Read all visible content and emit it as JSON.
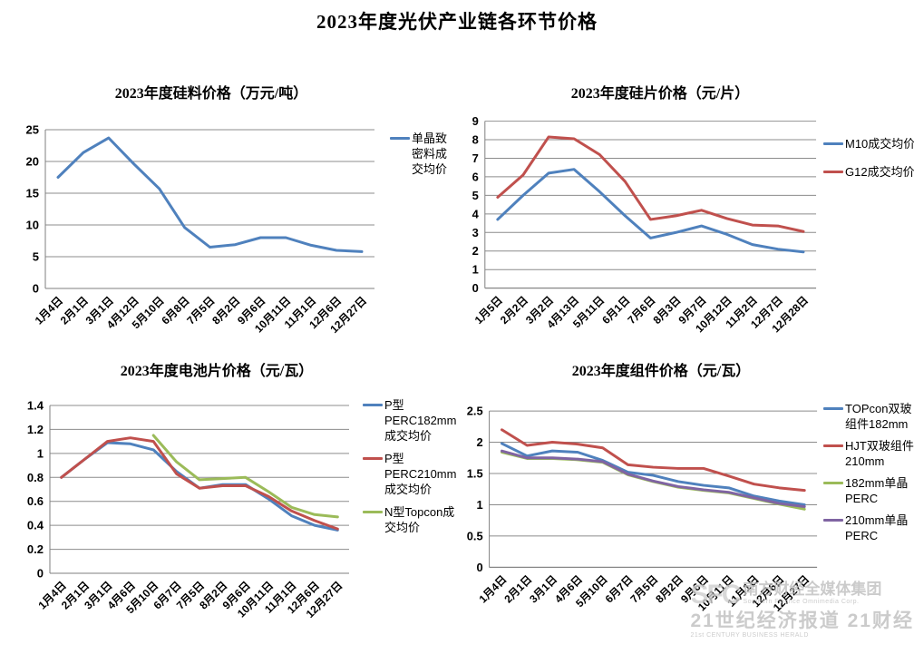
{
  "page_title": "2023年度光伏产业链各环节价格",
  "watermark": {
    "logo": "SFC",
    "org_cn": "南方财经全媒体集团",
    "org_en": "Southern Finance Omnimedia Corp.",
    "brand_cn": "21世纪经济报道 21财经",
    "brand_en": "21st CENTURY BUSINESS HERALD"
  },
  "chart_data": [
    {
      "id": "silicon-material-price",
      "type": "line",
      "title": "2023年度硅料价格（万元/吨）",
      "ylabel": "万元/吨",
      "ylim": [
        0,
        25
      ],
      "ystep": 5,
      "grid": true,
      "legend_position": "right",
      "categories": [
        "1月4日",
        "2月1日",
        "3月1日",
        "4月12日",
        "5月10日",
        "6月8日",
        "7月5日",
        "8月2日",
        "9月6日",
        "10月11日",
        "11月1日",
        "12月6日",
        "12月27日"
      ],
      "series": [
        {
          "name": "单晶致密料成交均价",
          "color": "#4F81BD",
          "values": [
            17.5,
            21.4,
            23.7,
            19.6,
            15.7,
            9.6,
            6.5,
            6.9,
            8.0,
            8.0,
            6.8,
            6.0,
            5.8
          ]
        }
      ]
    },
    {
      "id": "silicon-wafer-price",
      "type": "line",
      "title": "2023年度硅片价格（元/片）",
      "ylabel": "元/片",
      "ylim": [
        0,
        9
      ],
      "ystep": 1,
      "grid": true,
      "legend_position": "right",
      "categories": [
        "1月5日",
        "2月2日",
        "3月2日",
        "4月13日",
        "5月11日",
        "6月1日",
        "7月6日",
        "8月3日",
        "9月7日",
        "10月12日",
        "11月2日",
        "12月7日",
        "12月28日"
      ],
      "series": [
        {
          "name": "M10成交均价",
          "color": "#4F81BD",
          "values": [
            3.7,
            5.0,
            6.2,
            6.4,
            5.2,
            3.9,
            2.7,
            3.0,
            3.35,
            2.9,
            2.35,
            2.1,
            1.95
          ]
        },
        {
          "name": "G12成交均价",
          "color": "#C0504D",
          "values": [
            4.9,
            6.1,
            8.15,
            8.05,
            7.2,
            5.75,
            3.7,
            3.9,
            4.2,
            3.75,
            3.4,
            3.35,
            3.05
          ]
        }
      ]
    },
    {
      "id": "solar-cell-price",
      "type": "line",
      "title": "2023年度电池片价格（元/瓦）",
      "ylabel": "元/瓦",
      "ylim": [
        0,
        1.4
      ],
      "ystep": 0.2,
      "grid": true,
      "legend_position": "right",
      "categories": [
        "1月4日",
        "2月1日",
        "3月1日",
        "4月6日",
        "5月10日",
        "6月7日",
        "7月5日",
        "8月2日",
        "9月6日",
        "10月11日",
        "11月1日",
        "12月6日",
        "12月27日"
      ],
      "series": [
        {
          "name": "P型PERC182mm成交均价",
          "color": "#4F81BD",
          "values": [
            0.8,
            0.95,
            1.09,
            1.08,
            1.03,
            0.85,
            0.71,
            0.74,
            0.74,
            0.62,
            0.48,
            0.4,
            0.36
          ]
        },
        {
          "name": "P型PERC210mm成交均价",
          "color": "#C0504D",
          "values": [
            0.8,
            0.95,
            1.1,
            1.13,
            1.1,
            0.83,
            0.71,
            0.73,
            0.73,
            0.64,
            0.52,
            0.44,
            0.37
          ]
        },
        {
          "name": "N型Topcon成交均价",
          "color": "#9BBB59",
          "values": [
            null,
            null,
            null,
            null,
            1.15,
            0.93,
            0.78,
            0.79,
            0.8,
            0.68,
            0.55,
            0.49,
            0.47
          ]
        }
      ]
    },
    {
      "id": "module-price",
      "type": "line",
      "title": "2023年度组件价格（元/瓦）",
      "ylabel": "元/瓦",
      "ylim": [
        0,
        2.5
      ],
      "ystep": 0.5,
      "grid": true,
      "legend_position": "right",
      "categories": [
        "1月4日",
        "2月1日",
        "3月1日",
        "4月6日",
        "5月10日",
        "6月7日",
        "7月5日",
        "8月2日",
        "9月6日",
        "10月11日",
        "11月1日",
        "12月6日",
        "12月27日"
      ],
      "series": [
        {
          "name": "TOPcon双玻组件182mm",
          "color": "#4F81BD",
          "values": [
            1.98,
            1.78,
            1.86,
            1.84,
            1.71,
            1.52,
            1.47,
            1.37,
            1.31,
            1.27,
            1.14,
            1.06,
            1.0
          ]
        },
        {
          "name": "HJT双玻组件210mm",
          "color": "#C0504D",
          "values": [
            2.2,
            1.95,
            2.0,
            1.97,
            1.91,
            1.64,
            1.6,
            1.58,
            1.58,
            1.46,
            1.33,
            1.27,
            1.23
          ]
        },
        {
          "name": "182mm单晶PERC",
          "color": "#9BBB59",
          "values": [
            1.84,
            1.74,
            1.74,
            1.72,
            1.68,
            1.48,
            1.37,
            1.28,
            1.23,
            1.19,
            1.1,
            1.01,
            0.93
          ]
        },
        {
          "name": "210mm单晶PERC",
          "color": "#8064A2",
          "values": [
            1.86,
            1.75,
            1.75,
            1.73,
            1.69,
            1.49,
            1.38,
            1.29,
            1.24,
            1.2,
            1.11,
            1.02,
            0.97
          ]
        }
      ]
    }
  ]
}
